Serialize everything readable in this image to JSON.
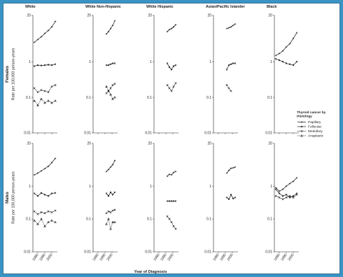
{
  "colors": {
    "frame": "#3a94c4",
    "frame_edge": "#1f5f86",
    "background": "#ffffff",
    "ink": "#222222"
  },
  "chart_data": {
    "type": "line",
    "layout": "small-multiples 2 rows x 5 columns",
    "xlabel": "Year of Diagnosis",
    "ylabel": "Rate per 100,000 person-years",
    "yscale": "log",
    "ylim": [
      0.01,
      20
    ],
    "yticks": [
      20,
      1,
      0.1,
      0.01
    ],
    "ytick_labels": [
      "20",
      "1",
      "0.1",
      "0.01"
    ],
    "xlim": [
      1973,
      2008
    ],
    "xticks": [
      1980,
      1990,
      2000
    ],
    "xtick_labels": [
      "1980",
      "1990",
      "2000"
    ],
    "grid": false,
    "legend": {
      "position": "right",
      "title": [
        "Thyroid cancer by",
        "Histology"
      ],
      "entries": [
        "Papillary",
        "Follicular",
        "Medullary",
        "Anaplastic"
      ]
    },
    "columns": [
      "White",
      "White Non-Hispanic",
      "White Hispanic",
      "Asian/Pacific Islander",
      "Black"
    ],
    "rows": [
      {
        "label": "Females",
        "panels": [
          {
            "x": [
              1975,
              1980,
              1985,
              1990,
              1995,
              2000,
              2005
            ],
            "series": {
              "Papillary": [
                3.5,
                4.2,
                5.0,
                6.2,
                7.5,
                9.5,
                13.5
              ],
              "Follicular": [
                0.75,
                0.8,
                0.78,
                0.8,
                0.82,
                0.8,
                0.85
              ],
              "Medullary": [
                0.18,
                0.14,
                0.16,
                0.15,
                0.14,
                0.2,
                0.22
              ],
              "Anaplastic": [
                0.08,
                0.06,
                0.09,
                0.07,
                0.08,
                0.07,
                0.08
              ]
            }
          },
          {
            "x": [
              1992,
              1995,
              1998,
              2001,
              2004
            ],
            "series": {
              "Papillary": [
                6.0,
                7.0,
                8.5,
                10.5,
                14.0
              ],
              "Follicular": [
                0.8,
                0.8,
                0.85,
                0.9,
                0.9
              ],
              "Medullary": [
                0.13,
                0.15,
                0.18,
                0.22,
                0.24
              ],
              "Anaplastic": [
                0.2,
                0.15,
                0.12,
                0.09,
                0.1
              ]
            }
          },
          {
            "x": [
              1992,
              1995,
              1998,
              2001,
              2004
            ],
            "series": {
              "Papillary": [
                7.0,
                8.0,
                8.5,
                9.5,
                11.0
              ],
              "Follicular": [
                0.9,
                0.7,
                0.6,
                0.75,
                0.8
              ],
              "Medullary": [
                0.22,
                0.18,
                0.15,
                0.2,
                0.25
              ]
            }
          },
          {
            "x": [
              1992,
              1995,
              1998,
              2001,
              2004
            ],
            "series": {
              "Papillary": [
                8.5,
                9.0,
                9.5,
                10.5,
                11.5
              ],
              "Follicular": [
                0.6,
                0.8,
                0.85,
                0.9,
                0.9
              ],
              "Medullary": [
                0.22,
                0.18,
                0.15,
                null,
                null
              ]
            }
          },
          {
            "x": [
              1975,
              1980,
              1985,
              1990,
              1995,
              2000,
              2005
            ],
            "series": {
              "Papillary": [
                1.5,
                1.7,
                2.0,
                2.6,
                3.2,
                4.5,
                6.5
              ],
              "Follicular": [
                1.2,
                1.1,
                1.0,
                0.9,
                0.85,
                0.8,
                1.0
              ]
            }
          }
        ]
      },
      {
        "label": "Males",
        "panels": [
          {
            "x": [
              1975,
              1980,
              1985,
              1990,
              1995,
              2000,
              2005
            ],
            "series": {
              "Papillary": [
                2.2,
                2.5,
                2.9,
                3.4,
                4.0,
                5.2,
                7.0
              ],
              "Follicular": [
                0.6,
                0.5,
                0.62,
                0.55,
                0.5,
                0.6,
                0.62
              ],
              "Medullary": [
                0.17,
                0.14,
                0.16,
                0.15,
                0.17,
                0.16,
                0.18
              ],
              "Anaplastic": [
                0.09,
                0.07,
                0.1,
                0.06,
                0.08,
                0.09,
                0.08
              ]
            }
          },
          {
            "x": [
              1992,
              1995,
              1998,
              2001,
              2004
            ],
            "series": {
              "Papillary": [
                2.8,
                3.2,
                3.8,
                4.5,
                6.0
              ],
              "Follicular": [
                0.6,
                0.5,
                0.65,
                0.55,
                0.65
              ],
              "Medullary": [
                0.15,
                0.17,
                0.16,
                0.18,
                0.19
              ],
              "Anaplastic": [
                0.07,
                0.1,
                0.05,
                0.08,
                0.08
              ]
            }
          },
          {
            "x": [
              1992,
              1995,
              1998,
              2001,
              2004
            ],
            "series": {
              "Papillary": [
                2.0,
                2.3,
                2.2,
                2.6,
                2.8
              ],
              "Follicular": [
                0.35,
                0.35,
                0.35,
                0.35,
                0.35
              ],
              "Medullary": [
                0.12,
                0.1,
                0.08,
                0.06,
                0.05
              ]
            }
          },
          {
            "x": [
              1992,
              1995,
              1998,
              2001,
              2004
            ],
            "series": {
              "Papillary": [
                2.5,
                3.0,
                3.5,
                3.6,
                3.8
              ],
              "Follicular": [
                0.45,
                0.4,
                0.55,
                0.42,
                0.45
              ]
            }
          },
          {
            "x": [
              1975,
              1980,
              1985,
              1990,
              1995,
              2000,
              2005
            ],
            "series": {
              "Papillary": [
                0.9,
                0.7,
                0.8,
                1.0,
                1.2,
                1.4,
                1.8
              ],
              "Follicular": [
                0.8,
                0.6,
                0.5,
                0.55,
                0.45,
                0.5,
                0.6
              ],
              "Medullary": [
                0.5,
                0.45,
                0.4,
                0.45,
                0.5,
                0.45,
                0.55
              ]
            }
          }
        ]
      }
    ]
  }
}
